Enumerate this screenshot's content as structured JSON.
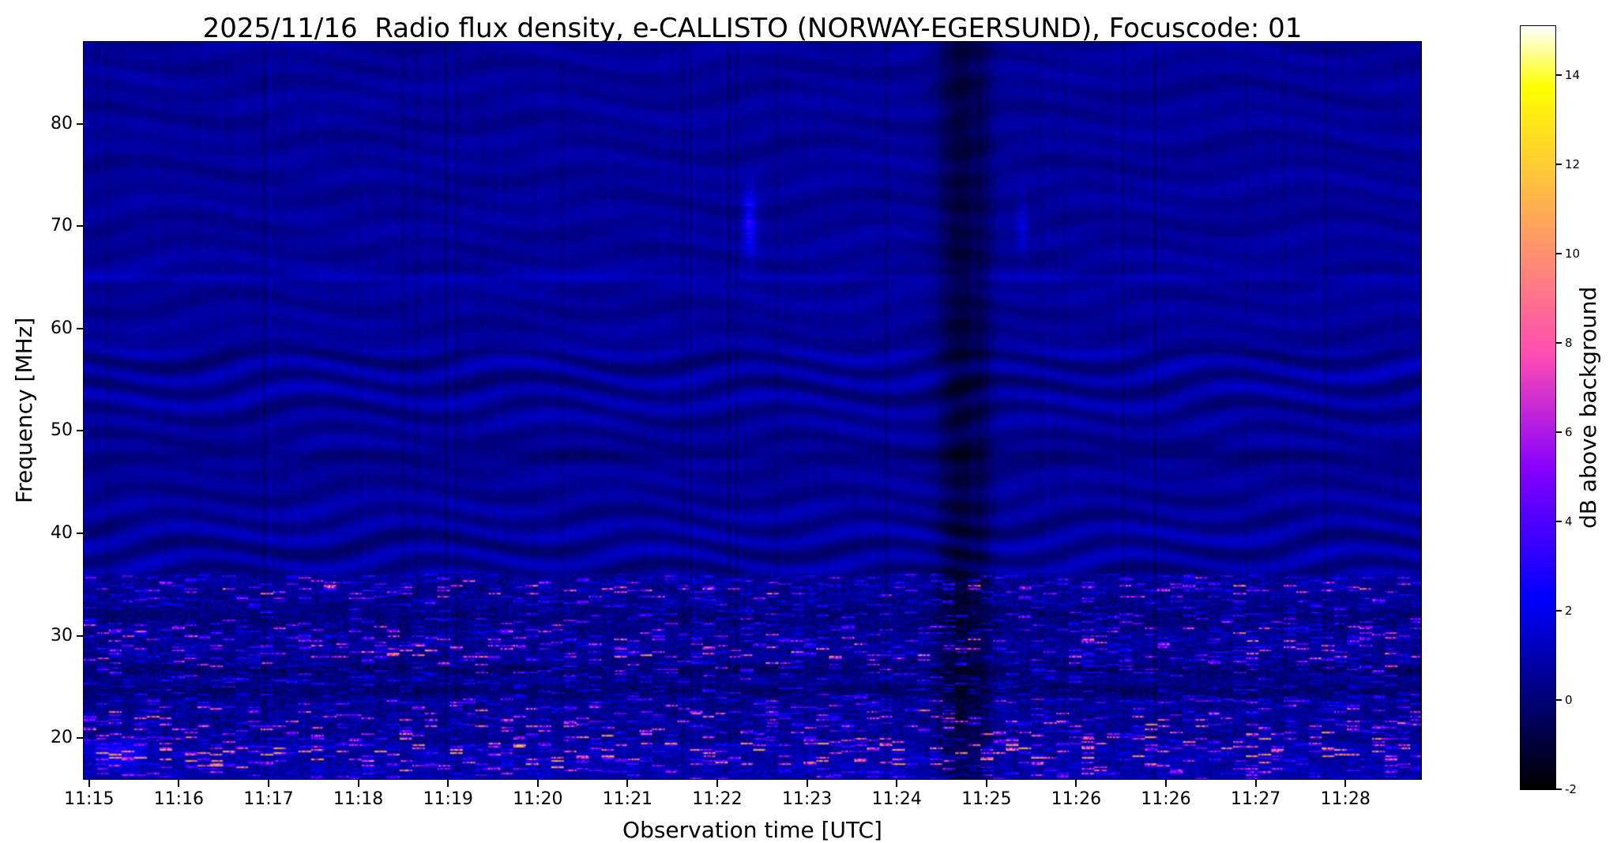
{
  "chart_data": {
    "type": "heatmap",
    "subtype": "radio-spectrogram",
    "title": "2025/11/16  Radio flux density, e-CALLISTO (NORWAY-EGERSUND), Focuscode: 01",
    "xlabel": "Observation time [UTC]",
    "ylabel": "Frequency [MHz]",
    "x_tick_labels": [
      "11:15",
      "11:16",
      "11:17",
      "11:18",
      "11:19",
      "11:20",
      "11:21",
      "11:22",
      "11:23",
      "11:24",
      "11:25",
      "11:26",
      "11:26",
      "11:27",
      "11:28"
    ],
    "y_tick_values": [
      80,
      70,
      60,
      50,
      40,
      30,
      20
    ],
    "y_range_mhz": [
      16,
      88
    ],
    "x_range": {
      "start": "11:15",
      "end": "11:29"
    },
    "grid": "off",
    "colorbar": {
      "label": "dB above background",
      "tick_values": [
        -2,
        0,
        2,
        4,
        6,
        8,
        10,
        12,
        14
      ],
      "value_range": [
        -2,
        15.1
      ],
      "colormap": "gnuplot2"
    },
    "axis_layout": {
      "x_first_tick_frac": 0.004,
      "x_tick_step_frac": 0.0671
    },
    "content_description": {
      "background_level_db": 0.5,
      "interference_fringes": {
        "freq_band_mhz": [
          36,
          58
        ],
        "amplitude_db": 0.7,
        "note": "wavy undulating ripple pattern across whole plot, strongest between 36 and 58 MHz, fainter above 58 MHz"
      },
      "rfi_band_max_mhz": 36,
      "bright_rfi_freqs_mhz": [
        17.5,
        19.2,
        22.4,
        28.0,
        30.8,
        34.6
      ],
      "dark_horizontal_lanes_mhz": [
        24.6,
        26.6,
        31.9,
        47.6
      ],
      "faint_horizontal_enhancement_mhz": 65,
      "dark_vertical_band": {
        "time": "11:25",
        "depth_db": -1.5
      },
      "transients": [
        {
          "time": "11:22.5",
          "freq_mhz": [
            67,
            74
          ],
          "peak_db": 3
        },
        {
          "time": "11:25.5",
          "freq_mhz": [
            68,
            72
          ],
          "peak_db": 2
        }
      ]
    }
  }
}
